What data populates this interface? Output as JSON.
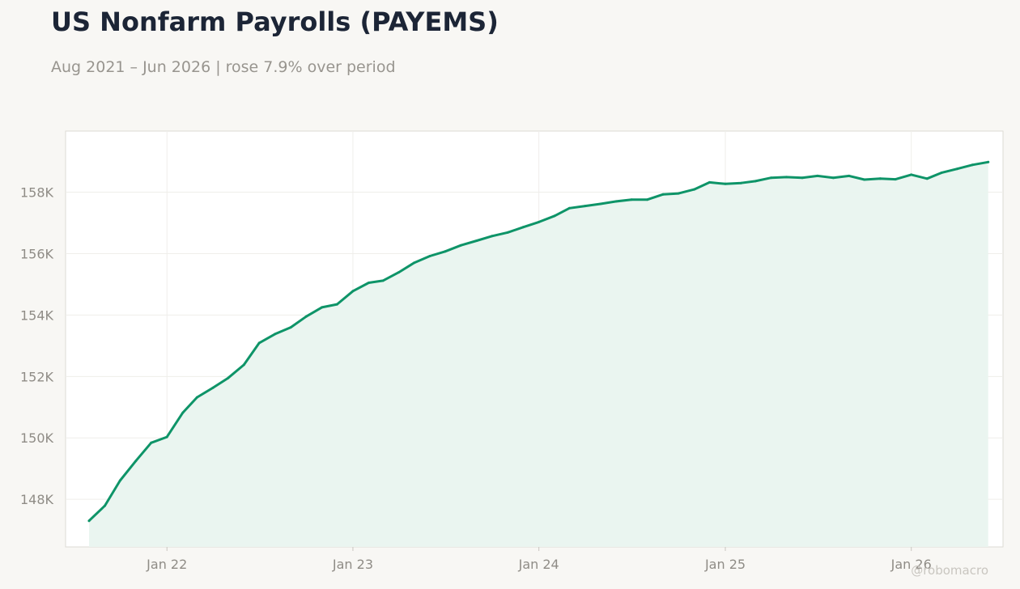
{
  "header": {
    "title": "US Nonfarm Payrolls (PAYEMS)",
    "subtitle": "Aug 2021 – Jun 2026 | rose 7.9% over period"
  },
  "watermark": "@robomacro",
  "colors": {
    "background": "#f8f7f4",
    "plot_background": "#ffffff",
    "line": "#0e9468",
    "fill": "#e9f4ef",
    "title": "#1c2536",
    "muted_text": "#98958f"
  },
  "chart_data": {
    "type": "area",
    "title": "US Nonfarm Payrolls (PAYEMS)",
    "subtitle": "Aug 2021 – Jun 2026 | rose 7.9% over period",
    "xlabel": "",
    "ylabel": "",
    "grid": true,
    "ylim": [
      146450,
      159990
    ],
    "xlim": [
      "2021-06-16",
      "2026-06-30"
    ],
    "x_ticks": [
      {
        "date": "2022-01-01",
        "label": "Jan 22"
      },
      {
        "date": "2023-01-01",
        "label": "Jan 23"
      },
      {
        "date": "2024-01-01",
        "label": "Jan 24"
      },
      {
        "date": "2025-01-01",
        "label": "Jan 25"
      },
      {
        "date": "2026-01-01",
        "label": "Jan 26"
      }
    ],
    "y_ticks": [
      {
        "value": 148000,
        "label": "148K"
      },
      {
        "value": 150000,
        "label": "150K"
      },
      {
        "value": 152000,
        "label": "152K"
      },
      {
        "value": 154000,
        "label": "154K"
      },
      {
        "value": 156000,
        "label": "156K"
      },
      {
        "value": 158000,
        "label": "158K"
      }
    ],
    "series": [
      {
        "x": [
          "2021-08-01",
          "2021-09-01",
          "2021-10-01",
          "2021-11-01",
          "2021-12-01",
          "2022-01-01",
          "2022-02-01",
          "2022-03-01",
          "2022-04-01",
          "2022-05-01",
          "2022-06-01",
          "2022-07-01",
          "2022-08-01",
          "2022-09-01",
          "2022-10-01",
          "2022-11-01",
          "2022-12-01",
          "2023-01-01",
          "2023-02-01",
          "2023-03-01",
          "2023-04-01",
          "2023-05-01",
          "2023-06-01",
          "2023-07-01",
          "2023-08-01",
          "2023-09-01",
          "2023-10-01",
          "2023-11-01",
          "2023-12-01",
          "2024-01-01",
          "2024-02-01",
          "2024-03-01",
          "2024-04-01",
          "2024-05-01",
          "2024-06-01",
          "2024-07-01",
          "2024-08-01",
          "2024-09-01",
          "2024-10-01",
          "2024-11-01",
          "2024-12-01",
          "2025-01-01",
          "2025-02-01",
          "2025-03-01",
          "2025-04-01",
          "2025-05-01",
          "2025-06-01",
          "2025-07-01",
          "2025-08-01",
          "2025-09-01",
          "2025-10-01",
          "2025-11-01",
          "2025-12-01",
          "2026-01-01",
          "2026-02-01",
          "2026-03-01",
          "2026-04-01",
          "2026-05-01",
          "2026-06-01"
        ],
        "values": [
          147300,
          147790,
          148610,
          149250,
          149840,
          150030,
          150820,
          151320,
          151630,
          151950,
          152380,
          153090,
          153380,
          153600,
          153950,
          154250,
          154350,
          154780,
          155050,
          155120,
          155390,
          155700,
          155920,
          156070,
          156270,
          156420,
          156570,
          156690,
          156860,
          157030,
          157230,
          157480,
          157550,
          157620,
          157700,
          157760,
          157760,
          157930,
          157960,
          158090,
          158320,
          158270,
          158300,
          158360,
          158470,
          158490,
          158470,
          158530,
          158470,
          158530,
          158410,
          158440,
          158420,
          158570,
          158440,
          158630,
          158760,
          158890,
          158980
        ]
      }
    ]
  }
}
